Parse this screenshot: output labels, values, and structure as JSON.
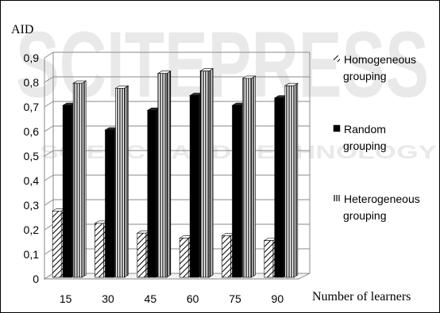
{
  "chart_data": {
    "type": "bar",
    "title": "",
    "ylabel": "AID",
    "xlabel": "Number of learners",
    "categories": [
      "15",
      "30",
      "45",
      "60",
      "75",
      "90"
    ],
    "ylim": [
      0,
      0.9
    ],
    "yticks": [
      "0",
      "0,1",
      "0,2",
      "0,3",
      "0,4",
      "0,5",
      "0,6",
      "0,7",
      "0,8",
      "0,9"
    ],
    "grid": true,
    "legend_position": "right",
    "series": [
      {
        "name": "Homogeneous grouping",
        "legend_lines": [
          "Homogeneous",
          "grouping"
        ],
        "pattern": "diagonal-hatch",
        "values": [
          0.27,
          0.22,
          0.18,
          0.16,
          0.17,
          0.15
        ]
      },
      {
        "name": "Random grouping",
        "legend_lines": [
          "Random",
          "grouping"
        ],
        "pattern": "solid-black",
        "values": [
          0.7,
          0.6,
          0.68,
          0.74,
          0.7,
          0.73
        ]
      },
      {
        "name": "Heterogeneous grouping",
        "legend_lines": [
          "Heterogeneous",
          "grouping"
        ],
        "pattern": "vertical-stripes",
        "values": [
          0.79,
          0.77,
          0.83,
          0.84,
          0.81,
          0.78
        ]
      }
    ]
  },
  "watermark": {
    "logo_text": "SCITEPRESS",
    "tagline": "SCIENCE AND TECHNOLOGY"
  }
}
